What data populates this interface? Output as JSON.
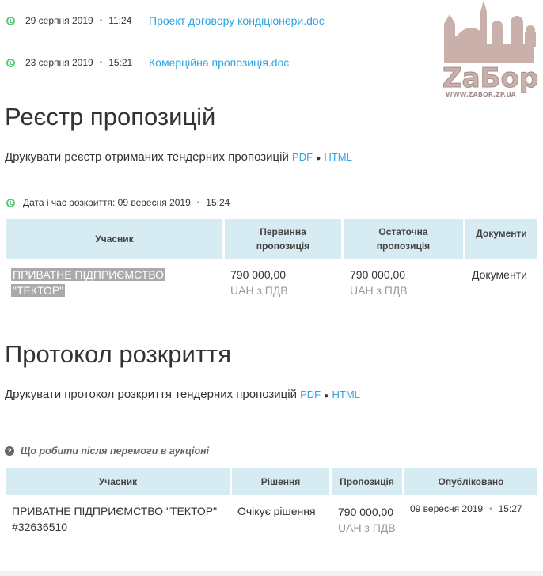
{
  "documents": [
    {
      "date": "29 серпня 2019",
      "time": "11:24",
      "name": "Проект договору кондіціонери.doc"
    },
    {
      "date": "23 серпня 2019",
      "time": "15:21",
      "name": "Комерційна пропозиція.doc"
    }
  ],
  "logo": {
    "text": "ZaБор",
    "url": "WWW.ZABOR.ZP.UA"
  },
  "registry": {
    "title": "Реєстр пропозицій",
    "print_text": "Друкувати реєстр отриманих тендерних пропозицій",
    "pdf": "PDF",
    "sep": "●",
    "html": "HTML",
    "opening_label": "Дата і час розкриття: 09 вересня 2019",
    "opening_time": "15:24",
    "headers": [
      "Учасник",
      "Первинна пропозиція",
      "Остаточна пропозиція",
      "Документи"
    ],
    "rows": [
      {
        "participant_line1": "ПРИВАТНЕ ПІДПРИЄМСТВО",
        "participant_line2": "\"ТЕКТОР\"",
        "initial": "790 000,00",
        "initial_unit": "UAH з ПДВ",
        "final": "790 000,00",
        "final_unit": "UAH з ПДВ",
        "docs": "Документи"
      }
    ]
  },
  "protocol": {
    "title": "Протокол розкриття",
    "print_text": "Друкувати протокол розкриття тендерних пропозицій",
    "pdf": "PDF",
    "sep": "●",
    "html": "HTML",
    "help": "Що робити після перемоги в аукціоні",
    "headers": [
      "Учасник",
      "Рішення",
      "Пропозиція",
      "Опубліковано"
    ],
    "rows": [
      {
        "participant": "ПРИВАТНЕ ПІДПРИЄМСТВО \"ТЕКТОР\"",
        "code": "#32636510",
        "decision": "Очікує рішення",
        "offer": "790 000,00",
        "unit": "UAH з ПДВ",
        "date": "09 вересня 2019",
        "time": "15:27"
      }
    ]
  },
  "colors": {
    "link": "#2ea3e0",
    "accent": "#5cc87d",
    "header_bg": "#d7ebf3"
  }
}
